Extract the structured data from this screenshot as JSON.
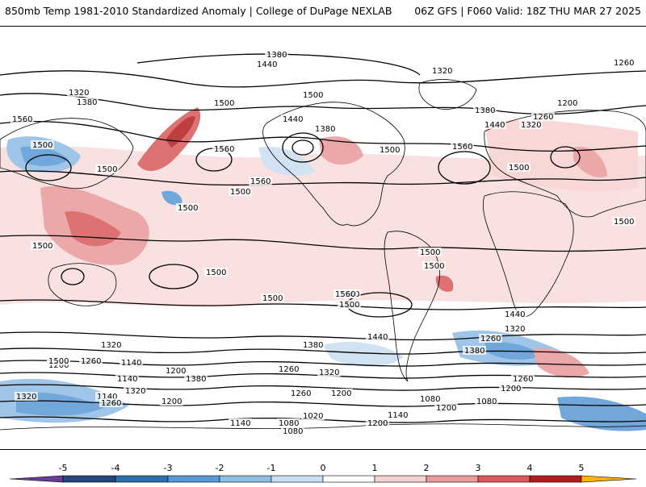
{
  "header": {
    "title_left": "850mb Temp 1981-2010 Standardized Anomaly | College of DuPage NEXLAB",
    "title_right": "06Z GFS | F060 Valid: 18Z THU MAR 27 2025"
  },
  "contour_labels": [
    "1380",
    "1440",
    "1320",
    "1260",
    "1320",
    "1380",
    "1560",
    "1500",
    "1500",
    "1440",
    "1380",
    "1200",
    "1260",
    "1440",
    "1380",
    "1320",
    "1500",
    "1560",
    "1500",
    "1560",
    "1500",
    "1560",
    "1500",
    "1500",
    "1500",
    "1500",
    "1500",
    "1500",
    "1500",
    "1560",
    "1500",
    "1500",
    "1440",
    "1380",
    "1320",
    "1200",
    "1260",
    "1140",
    "1200",
    "1260",
    "1320",
    "1140",
    "1200",
    "1080",
    "1020",
    "1140",
    "1200",
    "1260",
    "1080",
    "1320",
    "1380",
    "1440",
    "1200",
    "1260",
    "1140",
    "1080",
    "1560",
    "1500",
    "1500",
    "1320",
    "1380",
    "1260",
    "1200",
    "1140",
    "1320",
    "1260",
    "1080",
    "1200"
  ],
  "colorbar": {
    "ticks": [
      "-5",
      "-4",
      "-3",
      "-2",
      "-1",
      "0",
      "1",
      "2",
      "3",
      "4",
      "5"
    ],
    "colors": [
      "#6a3d9a",
      "#23477a",
      "#2f6fb0",
      "#5a98d6",
      "#8fbde6",
      "#c9def2",
      "#ffffff",
      "#f7d1d1",
      "#e99a9a",
      "#d95a5a",
      "#b21e1e",
      "#7a0c0c",
      "#ffb400"
    ]
  }
}
